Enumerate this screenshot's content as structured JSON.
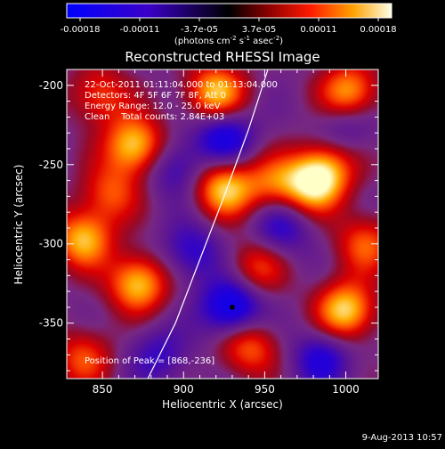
{
  "chart_data": {
    "type": "heatmap",
    "title": "Reconstructed RHESSI Image",
    "xlabel": "Heliocentric X (arcsec)",
    "ylabel": "Heliocentric Y (arcsec)",
    "xlim": [
      828,
      1020
    ],
    "ylim": [
      -385,
      -190
    ],
    "x_ticks": [
      850,
      900,
      950,
      1000
    ],
    "y_ticks": [
      -350,
      -300,
      -250,
      -200
    ],
    "colorbar": {
      "ticks": [
        "-0.00018",
        "-0.00011",
        "-3.7e-05",
        "3.7e-05",
        "0.00011",
        "0.00018"
      ],
      "label_main": "(photons cm",
      "label_sup1": "-2",
      "label_mid": " s",
      "label_sup2": "-1",
      "label_end": " asec",
      "label_sup3": "-2",
      "label_close": ")",
      "range": [
        -0.00018,
        0.00018
      ]
    },
    "annotations": [
      "22-Oct-2011 01:11:04.000 to 01:13:04.000",
      "Detectors: 4F 5F 6F 7F 8F, Att 0",
      "Energy Range: 12.0 - 25.0 keV",
      "Clean    Total counts: 2.84E+03"
    ],
    "peak_label": "Position of Peak = [868,-236]",
    "hot_sources": [
      {
        "x": 848,
        "y": -206,
        "v": 0.55
      },
      {
        "x": 870,
        "y": -238,
        "v": 0.95
      },
      {
        "x": 855,
        "y": -268,
        "v": 0.55
      },
      {
        "x": 920,
        "y": -205,
        "v": 0.9
      },
      {
        "x": 925,
        "y": -265,
        "v": 0.9
      },
      {
        "x": 955,
        "y": -262,
        "v": 0.55
      },
      {
        "x": 980,
        "y": -262,
        "v": 0.95
      },
      {
        "x": 1002,
        "y": -205,
        "v": 0.85
      },
      {
        "x": 990,
        "y": -250,
        "v": 0.5
      },
      {
        "x": 838,
        "y": -297,
        "v": 0.85
      },
      {
        "x": 872,
        "y": -325,
        "v": 0.9
      },
      {
        "x": 945,
        "y": -315,
        "v": 0.55
      },
      {
        "x": 1000,
        "y": -342,
        "v": 0.95
      },
      {
        "x": 838,
        "y": -372,
        "v": 0.55
      },
      {
        "x": 940,
        "y": -365,
        "v": 0.65
      },
      {
        "x": 1012,
        "y": -300,
        "v": 0.6
      }
    ],
    "cold_sources": [
      {
        "x": 925,
        "y": -232,
        "v": -0.7
      },
      {
        "x": 895,
        "y": -252,
        "v": -0.45
      },
      {
        "x": 930,
        "y": -340,
        "v": -0.9
      },
      {
        "x": 905,
        "y": -305,
        "v": -0.5
      },
      {
        "x": 960,
        "y": -290,
        "v": -0.5
      },
      {
        "x": 985,
        "y": -372,
        "v": -0.55
      },
      {
        "x": 885,
        "y": -370,
        "v": -0.4
      },
      {
        "x": 1000,
        "y": -225,
        "v": -0.4
      }
    ],
    "limb_curve": [
      [
        878,
        -385
      ],
      [
        895,
        -350
      ],
      [
        910,
        -310
      ],
      [
        925,
        -270
      ],
      [
        940,
        -228
      ],
      [
        952,
        -190
      ]
    ],
    "grid": false
  },
  "footer": {
    "date": "9-Aug-2013 10:57"
  }
}
